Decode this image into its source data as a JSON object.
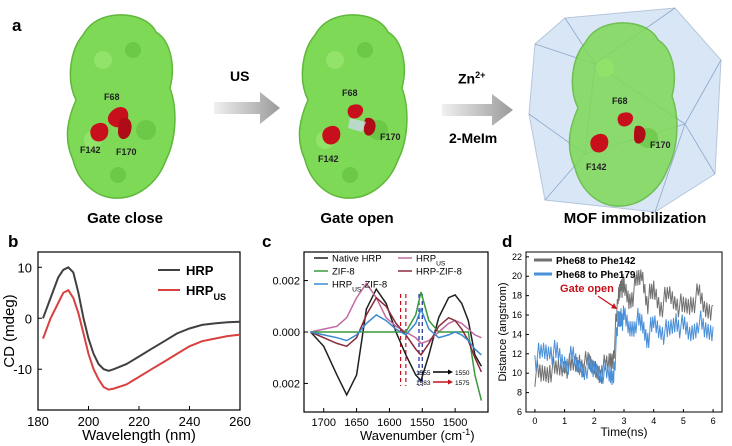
{
  "panel_a": {
    "label": "a",
    "arrow1_label": "US",
    "arrow2_label_top": "Zn",
    "arrow2_label_sup": "2+",
    "arrow2_label_bottom": "2-MeIm",
    "structures": [
      {
        "caption": "Gate close",
        "residues": [
          "F68",
          "F142",
          "F170"
        ]
      },
      {
        "caption": "Gate open",
        "residues": [
          "F68",
          "F142",
          "F170"
        ]
      },
      {
        "caption": "MOF immobilization",
        "residues": [
          "F68",
          "F142",
          "F170"
        ]
      }
    ],
    "colors": {
      "protein": "#7ed957",
      "residue": "#c8101c",
      "mof": "#b9d3f0"
    }
  },
  "panel_b": {
    "label": "b",
    "chart_data": {
      "type": "line",
      "xlabel": "Wavelength (nm)",
      "ylabel": "CD (mdeg)",
      "xlim": [
        180,
        260
      ],
      "ylim": [
        -18,
        13
      ],
      "xticks": [
        180,
        200,
        220,
        240,
        260
      ],
      "yticks": [
        10,
        0,
        -10
      ],
      "legend_position": "top-right",
      "series": [
        {
          "name": "HRP",
          "color": "#404040",
          "x": [
            182,
            185,
            188,
            190,
            192,
            194,
            196,
            198,
            200,
            202,
            204,
            206,
            208,
            210,
            215,
            220,
            225,
            230,
            235,
            240,
            245,
            250,
            255,
            260
          ],
          "y": [
            0,
            4,
            8,
            9.5,
            10,
            9,
            5,
            0,
            -4,
            -7,
            -9,
            -10,
            -10.3,
            -10,
            -9,
            -7.5,
            -6,
            -4.5,
            -3,
            -2,
            -1.3,
            -1,
            -0.8,
            -0.7
          ]
        },
        {
          "name": "HRP",
          "name_sub": "US",
          "color": "#d94040",
          "x": [
            182,
            185,
            188,
            190,
            192,
            194,
            196,
            198,
            200,
            202,
            204,
            206,
            208,
            210,
            215,
            220,
            225,
            230,
            235,
            240,
            245,
            250,
            255,
            260
          ],
          "y": [
            -4,
            0,
            3,
            5,
            5.5,
            4,
            1,
            -3,
            -7,
            -10,
            -12,
            -13.5,
            -14,
            -13.8,
            -13,
            -11.5,
            -10,
            -8.5,
            -7,
            -5.5,
            -4.5,
            -4,
            -3.5,
            -3.2
          ]
        }
      ]
    }
  },
  "panel_c": {
    "label": "c",
    "chart_data": {
      "type": "line",
      "xlabel": "Wavenumber (cm",
      "xlabel_sup": "-1",
      "xlabel_end": ")",
      "xlim": [
        1730,
        1450
      ],
      "ylim": [
        -0.0028,
        0.0028
      ],
      "xticks": [
        1700,
        1650,
        1600,
        1550,
        1500
      ],
      "yticks": [
        0.002,
        0.0,
        0.002
      ],
      "ytick_labels": [
        "0.002",
        "0.000",
        "0.002"
      ],
      "legend_position": "top",
      "vlines": [
        1583,
        1575,
        1555,
        1550
      ],
      "annotations": [
        {
          "from": "1555",
          "to": "1550",
          "color": "#000000"
        },
        {
          "from": "1583",
          "to": "1575",
          "color": "#c8101c"
        }
      ],
      "series": [
        {
          "name": "Native HRP",
          "color": "#202020",
          "x": [
            1720,
            1700,
            1680,
            1665,
            1650,
            1635,
            1620,
            1605,
            1590,
            1575,
            1560,
            1552,
            1540,
            1525,
            1510,
            1500,
            1490,
            1480,
            1470,
            1460
          ],
          "y": [
            0,
            -0.0005,
            -0.0015,
            -0.0022,
            -0.0015,
            0.0008,
            0.0015,
            0.001,
            0,
            -0.0008,
            -0.0015,
            -0.0017,
            -0.0008,
            0.0005,
            0.0012,
            0.0013,
            0.001,
            0.0004,
            -0.0008,
            -0.0012
          ]
        },
        {
          "name": "HRP",
          "name_sub": "US",
          "color": "#c06aa0",
          "x": [
            1720,
            1700,
            1680,
            1665,
            1650,
            1635,
            1620,
            1605,
            1590,
            1575,
            1560,
            1552,
            1540,
            1525,
            1510,
            1500,
            1490,
            1480,
            1470,
            1460
          ],
          "y": [
            0,
            0.0001,
            0.0002,
            0.0005,
            0.0012,
            0.0017,
            0.0012,
            0.0005,
            0.0002,
            0,
            -0.0002,
            -0.0004,
            -0.0003,
            0,
            0.0003,
            0.0004,
            0.0003,
            0.0001,
            -0.0001,
            -0.0002
          ]
        },
        {
          "name": "ZIF-8",
          "color": "#3a9a3a",
          "x": [
            1720,
            1700,
            1680,
            1665,
            1650,
            1635,
            1620,
            1605,
            1590,
            1575,
            1560,
            1552,
            1540,
            1525,
            1510,
            1500,
            1490,
            1480,
            1470,
            1460
          ],
          "y": [
            0,
            0,
            0,
            0,
            0,
            0,
            0,
            0,
            0,
            0,
            0.0006,
            0.0014,
            0.0004,
            0,
            0,
            0,
            0,
            0,
            -0.0015,
            -0.0024
          ]
        },
        {
          "name": "HRP-ZIF-8",
          "color": "#8a2a3a",
          "x": [
            1720,
            1700,
            1680,
            1665,
            1650,
            1635,
            1620,
            1605,
            1590,
            1575,
            1560,
            1552,
            1540,
            1525,
            1510,
            1500,
            1490,
            1480,
            1470,
            1460
          ],
          "y": [
            0,
            -0.0002,
            -0.0004,
            -0.0005,
            -0.0002,
            0.0006,
            0.0012,
            0.0009,
            0.0003,
            -0.0001,
            -0.0006,
            -0.0008,
            -0.0004,
            0.0002,
            0.0005,
            0.0004,
            0.0001,
            -0.0003,
            -0.0009,
            -0.0014
          ]
        },
        {
          "name": "HRP",
          "name_sub": "US",
          "name_end": "-ZIF-8",
          "color": "#3a8ad0",
          "x": [
            1720,
            1700,
            1680,
            1665,
            1650,
            1635,
            1620,
            1605,
            1590,
            1575,
            1560,
            1552,
            1540,
            1525,
            1510,
            1500,
            1490,
            1480,
            1470,
            1460
          ],
          "y": [
            0,
            -0.0001,
            -0.0002,
            -0.0003,
            -0.0001,
            0.0003,
            0.0006,
            0.0004,
            0.0001,
            -0.0001,
            0.0003,
            0.0008,
            0.0001,
            -0.0002,
            -0.0001,
            0,
            -0.0001,
            -0.0003,
            -0.0006,
            -0.0008
          ]
        }
      ]
    }
  },
  "panel_d": {
    "label": "d",
    "chart_data": {
      "type": "line",
      "xlabel": "Time(ns)",
      "ylabel": "Distance (angstrom)",
      "xlim": [
        -0.3,
        6.3
      ],
      "ylim": [
        6,
        22.5
      ],
      "xticks": [
        0,
        1,
        2,
        3,
        4,
        5,
        6
      ],
      "yticks": [
        6,
        8,
        10,
        12,
        14,
        16,
        18,
        20,
        22
      ],
      "legend_position": "top-left",
      "annotation": {
        "text": "Gate open",
        "color": "#c8101c",
        "x": 2.8,
        "y": 16.5
      },
      "series": [
        {
          "name": "Phe68 to Phe142",
          "color": "#707070",
          "x": [
            0,
            0.25,
            0.5,
            0.75,
            1,
            1.25,
            1.5,
            1.75,
            2,
            2.25,
            2.5,
            2.65,
            2.8,
            2.9,
            3.0,
            3.2,
            3.4,
            3.6,
            3.8,
            4,
            4.25,
            4.5,
            4.75,
            5,
            5.25,
            5.5,
            5.75,
            6
          ],
          "y": [
            10,
            9.8,
            10.5,
            10.2,
            11,
            10.5,
            11.2,
            10.8,
            10.6,
            10.3,
            11,
            12,
            17.5,
            19.5,
            18.5,
            17.5,
            19,
            20.2,
            17.5,
            18.5,
            17,
            18,
            17.5,
            16.5,
            17.2,
            18,
            16.5,
            17
          ]
        },
        {
          "name": "Phe68 to Phe179",
          "color": "#4a90d9",
          "x": [
            0,
            0.25,
            0.5,
            0.75,
            1,
            1.25,
            1.5,
            1.75,
            2,
            2.25,
            2.5,
            2.65,
            2.8,
            2.9,
            3.0,
            3.2,
            3.4,
            3.6,
            3.8,
            4,
            4.25,
            4.5,
            4.75,
            5,
            5.25,
            5.5,
            5.75,
            6
          ],
          "y": [
            11.5,
            12,
            12.5,
            11.8,
            11,
            11.5,
            10.5,
            10.8,
            10.2,
            10.5,
            9.5,
            10,
            15,
            16,
            15.5,
            14.5,
            15.5,
            15,
            13.8,
            15,
            14.5,
            14,
            15.5,
            14.5,
            14,
            15.5,
            14.2,
            14.8
          ]
        }
      ]
    }
  }
}
